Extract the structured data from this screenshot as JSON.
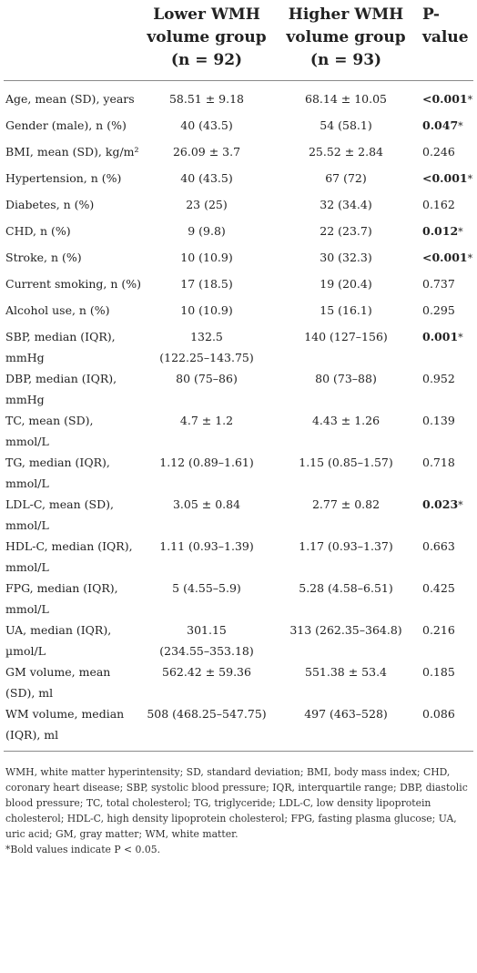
{
  "header": {
    "col1": "",
    "col2_line1": "Lower WMH",
    "col2_line2": "volume group",
    "col2_line3": "(n = 92)",
    "col3_line1": "Higher WMH",
    "col3_line2": "volume group",
    "col3_line3": "(n = 93)",
    "col4": "P-value"
  },
  "rows": [
    {
      "label": "Age, mean (SD), years",
      "lower": "58.51 ± 9.18",
      "lower2": "",
      "higher": "68.14 ± 10.05",
      "p": "<0.001",
      "sig": "*"
    },
    {
      "label": "Gender (male), n (%)",
      "lower": "40 (43.5)",
      "lower2": "",
      "higher": "54 (58.1)",
      "p": "0.047",
      "sig": "*"
    },
    {
      "label": "BMI, mean (SD), kg/m²",
      "lower": "26.09 ± 3.7",
      "lower2": "",
      "higher": "25.52 ± 2.84",
      "p": "0.246",
      "sig": ""
    },
    {
      "label": "Hypertension, n (%)",
      "lower": "40 (43.5)",
      "lower2": "",
      "higher": "67 (72)",
      "p": "<0.001",
      "sig": "*"
    },
    {
      "label": "Diabetes, n (%)",
      "lower": "23 (25)",
      "lower2": "",
      "higher": "32 (34.4)",
      "p": "0.162",
      "sig": ""
    },
    {
      "label": "CHD, n (%)",
      "lower": "9 (9.8)",
      "lower2": "",
      "higher": "22 (23.7)",
      "p": "0.012",
      "sig": "*"
    },
    {
      "label": "Stroke, n (%)",
      "lower": "10 (10.9)",
      "lower2": "",
      "higher": "30 (32.3)",
      "p": "<0.001",
      "sig": "*"
    },
    {
      "label": "Current smoking, n (%)",
      "lower": "17 (18.5)",
      "lower2": "",
      "higher": "19 (20.4)",
      "p": "0.737",
      "sig": ""
    },
    {
      "label": "Alcohol use, n (%)",
      "lower": "10 (10.9)",
      "lower2": "",
      "higher": "15 (16.1)",
      "p": "0.295",
      "sig": ""
    },
    {
      "label": "SBP, median (IQR),",
      "label2": "mmHg",
      "lower": "132.5",
      "lower2": "(122.25–143.75)",
      "higher": "140 (127–156)",
      "p": "0.001",
      "sig": "*"
    },
    {
      "label": "DBP, median (IQR),",
      "label2": "mmHg",
      "lower": "80 (75–86)",
      "lower2": "",
      "higher": "80 (73–88)",
      "p": "0.952",
      "sig": ""
    },
    {
      "label": "TC, mean (SD),",
      "label2": "mmol/L",
      "lower": "4.7 ± 1.2",
      "lower2": "",
      "higher": "4.43 ± 1.26",
      "p": "0.139",
      "sig": ""
    },
    {
      "label": "TG, median (IQR),",
      "label2": "mmol/L",
      "lower": "1.12 (0.89–1.61)",
      "lower2": "",
      "higher": "1.15 (0.85–1.57)",
      "p": "0.718",
      "sig": ""
    },
    {
      "label": "LDL-C, mean (SD),",
      "label2": "mmol/L",
      "lower": "3.05 ± 0.84",
      "lower2": "",
      "higher": "2.77 ± 0.82",
      "p": "0.023",
      "sig": "*"
    },
    {
      "label": "HDL-C, median (IQR),",
      "label2": "mmol/L",
      "lower": "1.11 (0.93–1.39)",
      "lower2": "",
      "higher": "1.17 (0.93–1.37)",
      "p": "0.663",
      "sig": ""
    },
    {
      "label": "FPG, median (IQR),",
      "label2": "mmol/L",
      "lower": "5 (4.55–5.9)",
      "lower2": "",
      "higher": "5.28 (4.58–6.51)",
      "p": "0.425",
      "sig": ""
    },
    {
      "label": "UA, median (IQR),",
      "label2": "µmol/L",
      "lower": "301.15",
      "lower2": "(234.55–353.18)",
      "higher": "313 (262.35–364.8)",
      "p": "0.216",
      "sig": ""
    },
    {
      "label": "GM volume, mean",
      "label2": "(SD), ml",
      "lower": "562.42 ± 59.36",
      "lower2": "",
      "higher": "551.38 ± 53.4",
      "p": "0.185",
      "sig": ""
    },
    {
      "label": "WM volume, median",
      "label2": "(IQR), ml",
      "lower": "508 (468.25–547.75)",
      "lower2": "",
      "higher": "497 (463–528)",
      "p": "0.086",
      "sig": ""
    }
  ],
  "footnote": {
    "abbreviations": "WMH, white matter hyperintensity; SD, standard deviation; BMI, body mass index; CHD, coronary heart disease; SBP, systolic blood pressure; IQR, interquartile range; DBP, diastolic blood pressure; TC, total cholesterol; TG, triglyceride; LDL-C, low density lipoprotein cholesterol; HDL-C, high density lipoprotein cholesterol; FPG, fasting plasma glucose; UA, uric acid; GM, gray matter; WM, white matter.",
    "note": "*Bold values indicate P < 0.05."
  }
}
